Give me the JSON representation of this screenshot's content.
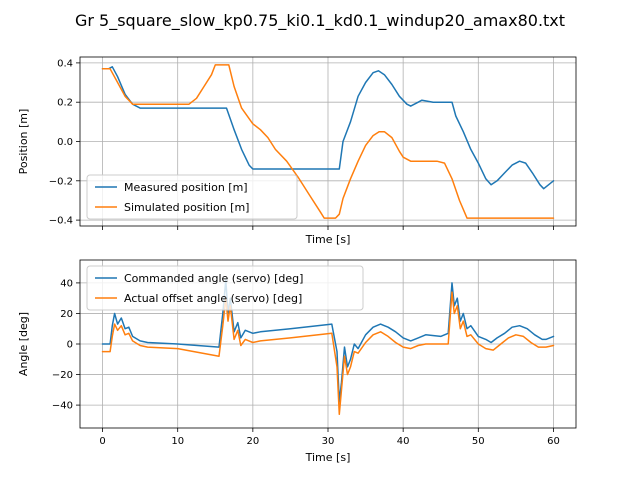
{
  "title": "Gr 5_square_slow_kp0.75_ki0.1_kd0.1_windup20_amax80.txt",
  "chart_data": [
    {
      "type": "line",
      "xlabel": "Time [s]",
      "ylabel": "Position [m]",
      "xlim": [
        -3,
        63
      ],
      "ylim": [
        -0.43,
        0.43
      ],
      "xticks": [
        0,
        10,
        20,
        30,
        40,
        50,
        60
      ],
      "yticks": [
        -0.4,
        -0.2,
        0.0,
        0.2,
        0.4
      ],
      "ytick_labels": [
        "−0.4",
        "−0.2",
        "0.0",
        "0.2",
        "0.4"
      ],
      "show_xtick_labels": false,
      "grid": true,
      "legend_position": "lower-left",
      "series": [
        {
          "name": "Measured position [m]",
          "color": "#1f77b4",
          "points": [
            [
              0,
              0.37
            ],
            [
              0.8,
              0.37
            ],
            [
              1.3,
              0.38
            ],
            [
              2,
              0.33
            ],
            [
              3,
              0.24
            ],
            [
              4,
              0.19
            ],
            [
              5,
              0.17
            ],
            [
              8,
              0.17
            ],
            [
              15.5,
              0.17
            ],
            [
              16.5,
              0.17
            ],
            [
              17.5,
              0.06
            ],
            [
              18.5,
              -0.04
            ],
            [
              19.5,
              -0.12
            ],
            [
              20,
              -0.14
            ],
            [
              21,
              -0.14
            ],
            [
              25,
              -0.14
            ],
            [
              29.5,
              -0.14
            ],
            [
              31.5,
              -0.14
            ],
            [
              32,
              0.0
            ],
            [
              33,
              0.1
            ],
            [
              34,
              0.23
            ],
            [
              35,
              0.3
            ],
            [
              36,
              0.35
            ],
            [
              36.7,
              0.36
            ],
            [
              37.5,
              0.34
            ],
            [
              38.5,
              0.29
            ],
            [
              39.5,
              0.23
            ],
            [
              40.5,
              0.19
            ],
            [
              41,
              0.18
            ],
            [
              42,
              0.2
            ],
            [
              42.5,
              0.21
            ],
            [
              44,
              0.2
            ],
            [
              46.5,
              0.2
            ],
            [
              47,
              0.13
            ],
            [
              48,
              0.05
            ],
            [
              49,
              -0.04
            ],
            [
              50,
              -0.11
            ],
            [
              51,
              -0.19
            ],
            [
              51.7,
              -0.22
            ],
            [
              52.5,
              -0.2
            ],
            [
              53.5,
              -0.16
            ],
            [
              54.5,
              -0.12
            ],
            [
              55.5,
              -0.1
            ],
            [
              56.3,
              -0.11
            ],
            [
              57.2,
              -0.16
            ],
            [
              58.2,
              -0.22
            ],
            [
              58.7,
              -0.24
            ],
            [
              60,
              -0.2
            ]
          ]
        },
        {
          "name": "Simulated position [m]",
          "color": "#ff7f0e",
          "points": [
            [
              0,
              0.37
            ],
            [
              1,
              0.37
            ],
            [
              2,
              0.3
            ],
            [
              3,
              0.23
            ],
            [
              4,
              0.19
            ],
            [
              5,
              0.19
            ],
            [
              10,
              0.19
            ],
            [
              11.5,
              0.19
            ],
            [
              12.5,
              0.22
            ],
            [
              13.5,
              0.28
            ],
            [
              14.5,
              0.34
            ],
            [
              15,
              0.39
            ],
            [
              16,
              0.39
            ],
            [
              16.8,
              0.39
            ],
            [
              17.5,
              0.28
            ],
            [
              18.5,
              0.17
            ],
            [
              20,
              0.09
            ],
            [
              21,
              0.06
            ],
            [
              22,
              0.02
            ],
            [
              23,
              -0.04
            ],
            [
              24.5,
              -0.1
            ],
            [
              26,
              -0.18
            ],
            [
              27.5,
              -0.27
            ],
            [
              29,
              -0.36
            ],
            [
              29.5,
              -0.39
            ],
            [
              31,
              -0.39
            ],
            [
              31.5,
              -0.37
            ],
            [
              32,
              -0.29
            ],
            [
              33,
              -0.19
            ],
            [
              34,
              -0.1
            ],
            [
              35,
              -0.02
            ],
            [
              36,
              0.03
            ],
            [
              36.8,
              0.05
            ],
            [
              37.5,
              0.05
            ],
            [
              38.5,
              0.02
            ],
            [
              39.5,
              -0.05
            ],
            [
              40,
              -0.08
            ],
            [
              41,
              -0.1
            ],
            [
              44.5,
              -0.1
            ],
            [
              45.5,
              -0.11
            ],
            [
              46.5,
              -0.19
            ],
            [
              47.5,
              -0.3
            ],
            [
              48.5,
              -0.39
            ],
            [
              52,
              -0.39
            ],
            [
              60,
              -0.39
            ]
          ]
        }
      ]
    },
    {
      "type": "line",
      "xlabel": "Time [s]",
      "ylabel": "Angle [deg]",
      "xlim": [
        -3,
        63
      ],
      "ylim": [
        -55,
        55
      ],
      "xticks": [
        0,
        10,
        20,
        30,
        40,
        50,
        60
      ],
      "yticks": [
        -40,
        -20,
        0,
        20,
        40
      ],
      "ytick_labels": [
        "−40",
        "−20",
        "0",
        "20",
        "40"
      ],
      "show_xtick_labels": true,
      "grid": true,
      "legend_position": "upper-left",
      "series": [
        {
          "name": "Commanded angle (servo) [deg]",
          "color": "#1f77b4",
          "points": [
            [
              0,
              0
            ],
            [
              1,
              0
            ],
            [
              1.3,
              12
            ],
            [
              1.6,
              20
            ],
            [
              2,
              13
            ],
            [
              2.5,
              17
            ],
            [
              3,
              10
            ],
            [
              3.5,
              11
            ],
            [
              4,
              5
            ],
            [
              5,
              2
            ],
            [
              6,
              1
            ],
            [
              10,
              0
            ],
            [
              15.5,
              -2
            ],
            [
              16,
              20
            ],
            [
              16.4,
              42
            ],
            [
              16.7,
              20
            ],
            [
              17,
              30
            ],
            [
              17.5,
              8
            ],
            [
              18,
              14
            ],
            [
              18.4,
              4
            ],
            [
              19,
              9
            ],
            [
              20,
              7
            ],
            [
              21,
              8
            ],
            [
              25,
              10
            ],
            [
              30.5,
              13
            ],
            [
              31.2,
              -5
            ],
            [
              31.5,
              -38
            ],
            [
              31.8,
              -25
            ],
            [
              32.2,
              -2
            ],
            [
              32.6,
              -15
            ],
            [
              33,
              -10
            ],
            [
              33.5,
              0
            ],
            [
              34,
              -3
            ],
            [
              35,
              6
            ],
            [
              36,
              11
            ],
            [
              37,
              13
            ],
            [
              38,
              11
            ],
            [
              39,
              8
            ],
            [
              40,
              4
            ],
            [
              41,
              2
            ],
            [
              42,
              4
            ],
            [
              43,
              6
            ],
            [
              45,
              5
            ],
            [
              46,
              7
            ],
            [
              46.5,
              40
            ],
            [
              46.8,
              25
            ],
            [
              47.2,
              30
            ],
            [
              47.6,
              15
            ],
            [
              48,
              20
            ],
            [
              48.5,
              10
            ],
            [
              49,
              12
            ],
            [
              50,
              5
            ],
            [
              51,
              3
            ],
            [
              51.7,
              1
            ],
            [
              52.5,
              4
            ],
            [
              53.5,
              7
            ],
            [
              54.5,
              11
            ],
            [
              55.5,
              12
            ],
            [
              56.5,
              10
            ],
            [
              57.5,
              6
            ],
            [
              58.5,
              3
            ],
            [
              59,
              3
            ],
            [
              60,
              5
            ]
          ]
        },
        {
          "name": "Actual offset angle (servo) [deg]",
          "color": "#ff7f0e",
          "points": [
            [
              0,
              -5
            ],
            [
              1,
              -5
            ],
            [
              1.3,
              5
            ],
            [
              1.6,
              13
            ],
            [
              2,
              9
            ],
            [
              2.5,
              12
            ],
            [
              3,
              6
            ],
            [
              3.5,
              7
            ],
            [
              4,
              2
            ],
            [
              5,
              -1
            ],
            [
              6,
              -2
            ],
            [
              10,
              -3
            ],
            [
              15.5,
              -8
            ],
            [
              16,
              12
            ],
            [
              16.4,
              30
            ],
            [
              16.7,
              15
            ],
            [
              17,
              25
            ],
            [
              17.5,
              3
            ],
            [
              18,
              9
            ],
            [
              18.4,
              -1
            ],
            [
              19,
              3
            ],
            [
              20,
              1
            ],
            [
              21,
              2
            ],
            [
              25,
              4
            ],
            [
              30.5,
              7
            ],
            [
              31.2,
              -15
            ],
            [
              31.5,
              -46
            ],
            [
              31.8,
              -30
            ],
            [
              32.2,
              -8
            ],
            [
              32.6,
              -20
            ],
            [
              33,
              -15
            ],
            [
              33.5,
              -5
            ],
            [
              34,
              -6
            ],
            [
              35,
              1
            ],
            [
              36,
              6
            ],
            [
              37,
              8
            ],
            [
              38,
              5
            ],
            [
              39,
              1
            ],
            [
              40,
              -2
            ],
            [
              41,
              -3
            ],
            [
              42,
              -1
            ],
            [
              43,
              0
            ],
            [
              46,
              0
            ],
            [
              46.5,
              34
            ],
            [
              46.8,
              20
            ],
            [
              47.2,
              25
            ],
            [
              47.6,
              10
            ],
            [
              48,
              15
            ],
            [
              48.5,
              5
            ],
            [
              49,
              6
            ],
            [
              50,
              0
            ],
            [
              51,
              -3
            ],
            [
              52,
              -4
            ],
            [
              53,
              0
            ],
            [
              54,
              4
            ],
            [
              55,
              6
            ],
            [
              56,
              5
            ],
            [
              57,
              1
            ],
            [
              58,
              -2
            ],
            [
              59,
              -2
            ],
            [
              60,
              -1
            ]
          ]
        }
      ]
    }
  ]
}
